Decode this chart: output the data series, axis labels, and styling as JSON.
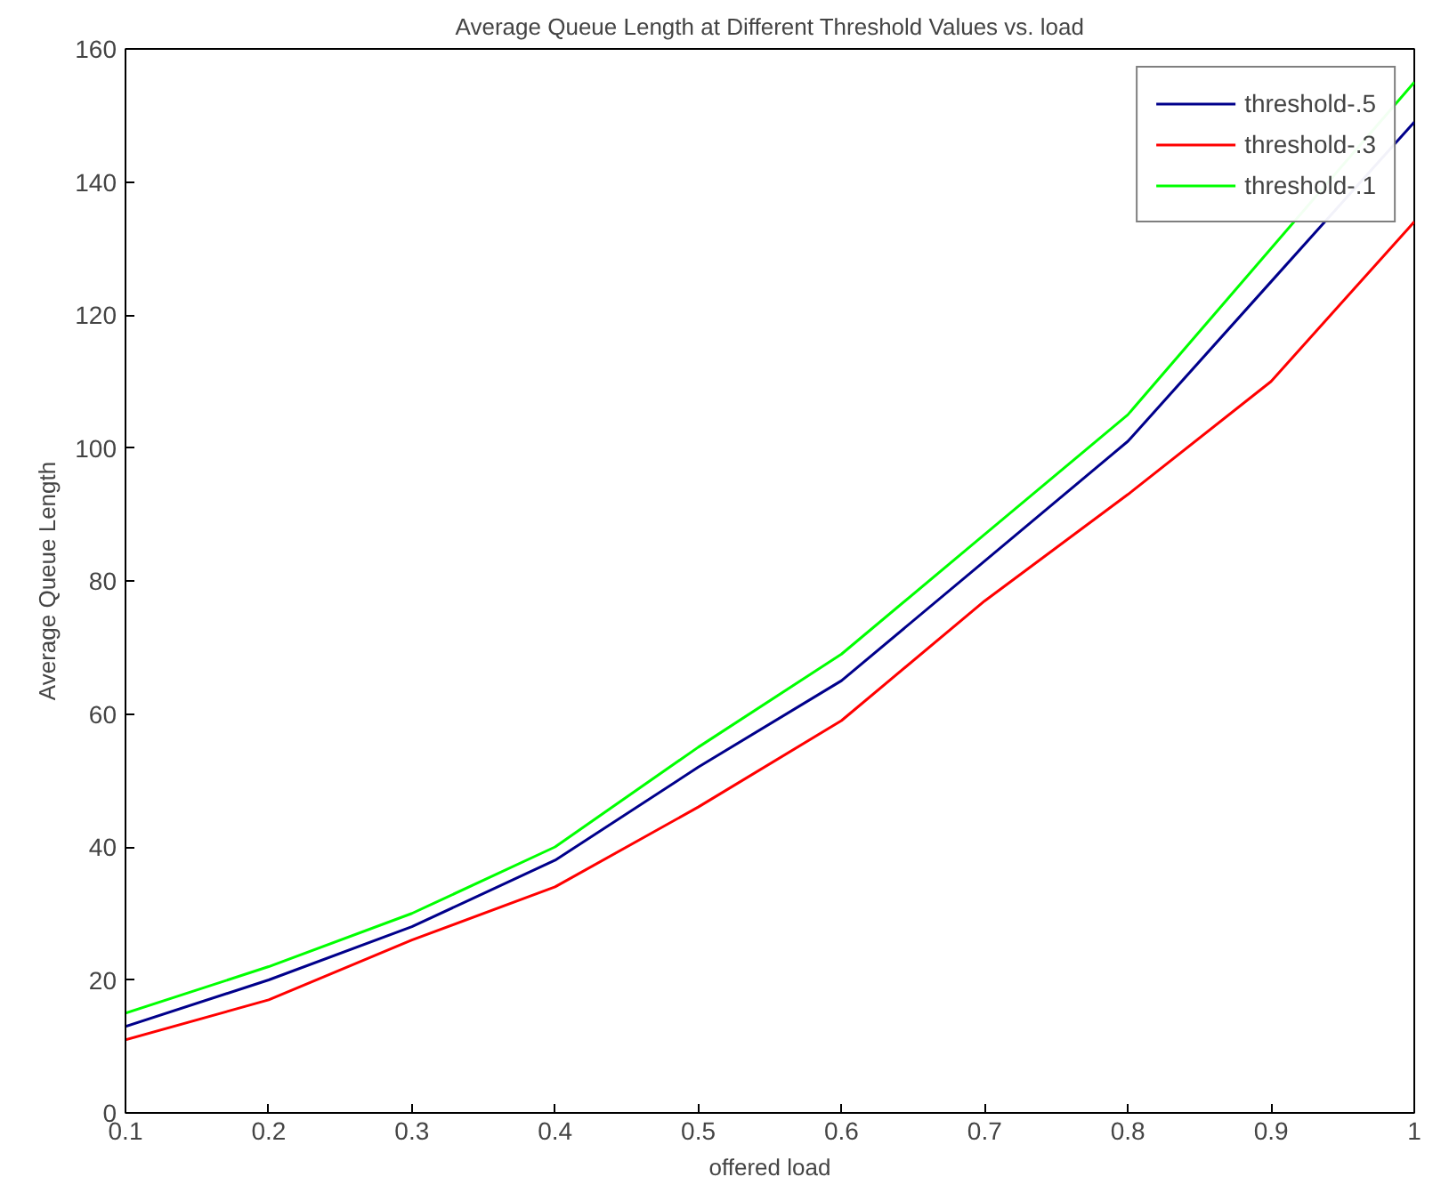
{
  "chart_data": {
    "type": "line",
    "title": "Average Queue Length at Different Threshold Values vs. load",
    "xlabel": "offered load",
    "ylabel": "Average Queue Length",
    "x": [
      0.1,
      0.2,
      0.3,
      0.4,
      0.5,
      0.6,
      0.7,
      0.8,
      0.9,
      1.0
    ],
    "series": [
      {
        "name": "threshold-.5",
        "color": "#00008b",
        "values": [
          13,
          20,
          28,
          38,
          52,
          65,
          83,
          101,
          125,
          149
        ]
      },
      {
        "name": "threshold-.3",
        "color": "#ff0000",
        "values": [
          11,
          17,
          26,
          34,
          46,
          59,
          77,
          93,
          110,
          134
        ]
      },
      {
        "name": "threshold-.1",
        "color": "#00ff00",
        "values": [
          15,
          22,
          30,
          40,
          55,
          69,
          87,
          105,
          130,
          155
        ]
      }
    ],
    "xlim": [
      0.1,
      1
    ],
    "xticks": [
      0.1,
      0.2,
      0.3,
      0.4,
      0.5,
      0.6,
      0.7,
      0.8,
      0.9,
      1
    ],
    "ylim": [
      0,
      160
    ],
    "yticks": [
      0,
      20,
      40,
      60,
      80,
      100,
      120,
      140,
      160
    ],
    "grid": false,
    "legend": "top right",
    "marker": "none",
    "line_style": "solid"
  }
}
